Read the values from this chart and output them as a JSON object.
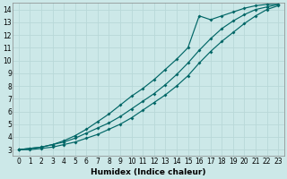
{
  "xlabel": "Humidex (Indice chaleur)",
  "ylabel": "",
  "bg_color": "#cce8e8",
  "grid_color": "#b8d8d8",
  "line_color": "#006666",
  "xlim": [
    -0.5,
    23.5
  ],
  "ylim": [
    2.5,
    14.5
  ],
  "xticks": [
    0,
    1,
    2,
    3,
    4,
    5,
    6,
    7,
    8,
    9,
    10,
    11,
    12,
    13,
    14,
    15,
    16,
    17,
    18,
    19,
    20,
    21,
    22,
    23
  ],
  "yticks": [
    3,
    4,
    5,
    6,
    7,
    8,
    9,
    10,
    11,
    12,
    13,
    14
  ],
  "line1_x": [
    0,
    1,
    2,
    3,
    4,
    5,
    6,
    7,
    8,
    9,
    10,
    11,
    12,
    13,
    14,
    15,
    16,
    17,
    18,
    19,
    20,
    21,
    22,
    23
  ],
  "line1_y": [
    3.0,
    3.1,
    3.2,
    3.4,
    3.6,
    3.9,
    4.3,
    4.7,
    5.1,
    5.6,
    6.2,
    6.8,
    7.4,
    8.1,
    8.9,
    9.8,
    10.8,
    11.7,
    12.5,
    13.1,
    13.6,
    14.0,
    14.2,
    14.4
  ],
  "line2_x": [
    0,
    1,
    2,
    3,
    4,
    5,
    6,
    7,
    8,
    9,
    10,
    11,
    12,
    13,
    14,
    15,
    16,
    17,
    18,
    19,
    20,
    21,
    22,
    23
  ],
  "line2_y": [
    3.0,
    3.1,
    3.2,
    3.4,
    3.7,
    4.1,
    4.6,
    5.2,
    5.8,
    6.5,
    7.2,
    7.8,
    8.5,
    9.3,
    10.1,
    11.0,
    13.5,
    13.2,
    13.5,
    13.8,
    14.1,
    14.3,
    14.4,
    14.4
  ],
  "line3_x": [
    0,
    1,
    2,
    3,
    4,
    5,
    6,
    7,
    8,
    9,
    10,
    11,
    12,
    13,
    14,
    15,
    16,
    17,
    18,
    19,
    20,
    21,
    22,
    23
  ],
  "line3_y": [
    3.0,
    3.0,
    3.1,
    3.2,
    3.4,
    3.6,
    3.9,
    4.2,
    4.6,
    5.0,
    5.5,
    6.1,
    6.7,
    7.3,
    8.0,
    8.8,
    9.8,
    10.7,
    11.5,
    12.2,
    12.9,
    13.5,
    14.0,
    14.3
  ]
}
